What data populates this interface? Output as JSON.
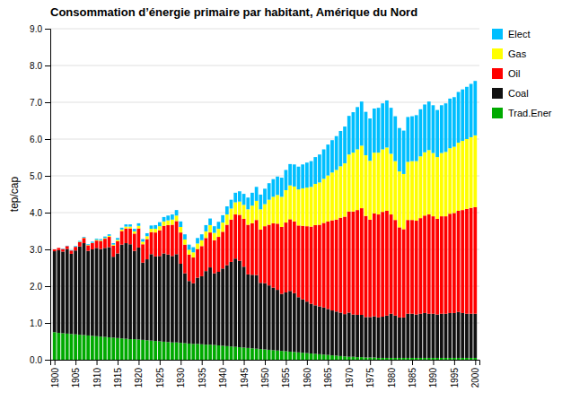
{
  "chart_data": {
    "type": "bar",
    "stacked": true,
    "title": "Consommation d’énergie primaire par habitant, Amérique du Nord",
    "ylabel": "tep/cap",
    "grid": true,
    "legend": "right",
    "x": [
      1900,
      1901,
      1902,
      1903,
      1904,
      1905,
      1906,
      1907,
      1908,
      1909,
      1910,
      1911,
      1912,
      1913,
      1914,
      1915,
      1916,
      1917,
      1918,
      1919,
      1920,
      1921,
      1922,
      1923,
      1924,
      1925,
      1926,
      1927,
      1928,
      1929,
      1930,
      1931,
      1932,
      1933,
      1934,
      1935,
      1936,
      1937,
      1938,
      1939,
      1940,
      1941,
      1942,
      1943,
      1944,
      1945,
      1946,
      1947,
      1948,
      1949,
      1950,
      1951,
      1952,
      1953,
      1954,
      1955,
      1956,
      1957,
      1958,
      1959,
      1960,
      1961,
      1962,
      1963,
      1964,
      1965,
      1966,
      1967,
      1968,
      1969,
      1970,
      1971,
      1972,
      1973,
      1974,
      1975,
      1976,
      1977,
      1978,
      1979,
      1980,
      1981,
      1982,
      1983,
      1984,
      1985,
      1986,
      1987,
      1988,
      1989,
      1990,
      1991,
      1992,
      1993,
      1994,
      1995,
      1996,
      1997,
      1998,
      1999,
      2000
    ],
    "xlim": [
      1899,
      2001
    ],
    "xticks": [
      1900,
      1905,
      1910,
      1915,
      1920,
      1925,
      1930,
      1935,
      1940,
      1945,
      1950,
      1955,
      1960,
      1965,
      1970,
      1975,
      1980,
      1985,
      1990,
      1995,
      2000
    ],
    "ylim": [
      0,
      9.0
    ],
    "yticks": [
      {
        "value": 0.0,
        "label": "0.0"
      },
      {
        "value": 1.0,
        "label": "1.0"
      },
      {
        "value": 2.0,
        "label": "2.0"
      },
      {
        "value": 3.0,
        "label": "3.0"
      },
      {
        "value": 4.0,
        "label": "4.0"
      },
      {
        "value": 5.0,
        "label": "5.0"
      },
      {
        "value": 6.0,
        "label": "6.0"
      },
      {
        "value": 7.0,
        "label": "7.0"
      },
      {
        "value": 8.0,
        "label": "8.0"
      },
      {
        "value": 9.0,
        "label": "9.0"
      }
    ],
    "series": [
      {
        "name": "Trad.Ener",
        "color": "#00aa00",
        "values": [
          0.75,
          0.73,
          0.72,
          0.71,
          0.7,
          0.69,
          0.68,
          0.67,
          0.66,
          0.65,
          0.64,
          0.63,
          0.62,
          0.61,
          0.6,
          0.59,
          0.58,
          0.57,
          0.56,
          0.56,
          0.55,
          0.54,
          0.53,
          0.52,
          0.51,
          0.5,
          0.49,
          0.48,
          0.47,
          0.47,
          0.46,
          0.45,
          0.44,
          0.43,
          0.43,
          0.42,
          0.41,
          0.41,
          0.4,
          0.39,
          0.38,
          0.37,
          0.36,
          0.35,
          0.34,
          0.33,
          0.32,
          0.31,
          0.3,
          0.29,
          0.28,
          0.27,
          0.26,
          0.25,
          0.24,
          0.23,
          0.22,
          0.21,
          0.2,
          0.19,
          0.18,
          0.17,
          0.16,
          0.15,
          0.14,
          0.13,
          0.12,
          0.11,
          0.1,
          0.09,
          0.08,
          0.08,
          0.07,
          0.07,
          0.06,
          0.06,
          0.06,
          0.05,
          0.05,
          0.05,
          0.05,
          0.05,
          0.05,
          0.05,
          0.05,
          0.05,
          0.05,
          0.05,
          0.05,
          0.05,
          0.05,
          0.05,
          0.05,
          0.05,
          0.05,
          0.05,
          0.05,
          0.05,
          0.05,
          0.05,
          0.05
        ]
      },
      {
        "name": "Coal",
        "color": "#111111",
        "values": [
          2.2,
          2.25,
          2.22,
          2.3,
          2.18,
          2.28,
          2.4,
          2.5,
          2.3,
          2.35,
          2.4,
          2.38,
          2.42,
          2.45,
          2.2,
          2.3,
          2.55,
          2.6,
          2.58,
          2.4,
          2.5,
          2.1,
          2.2,
          2.35,
          2.3,
          2.32,
          2.4,
          2.38,
          2.35,
          2.4,
          2.15,
          1.9,
          1.7,
          1.65,
          1.8,
          1.85,
          2.0,
          2.1,
          1.95,
          2.0,
          2.1,
          2.2,
          2.3,
          2.4,
          2.35,
          2.2,
          2.0,
          2.0,
          2.0,
          1.8,
          1.8,
          1.75,
          1.7,
          1.65,
          1.55,
          1.6,
          1.65,
          1.6,
          1.5,
          1.45,
          1.4,
          1.35,
          1.32,
          1.3,
          1.28,
          1.25,
          1.22,
          1.2,
          1.18,
          1.15,
          1.2,
          1.15,
          1.15,
          1.15,
          1.1,
          1.1,
          1.12,
          1.1,
          1.12,
          1.15,
          1.2,
          1.15,
          1.1,
          1.1,
          1.2,
          1.2,
          1.18,
          1.2,
          1.22,
          1.2,
          1.2,
          1.18,
          1.2,
          1.2,
          1.22,
          1.22,
          1.25,
          1.22,
          1.2,
          1.2,
          1.2
        ]
      },
      {
        "name": "Oil",
        "color": "#ff0000",
        "values": [
          0.05,
          0.06,
          0.07,
          0.08,
          0.09,
          0.1,
          0.12,
          0.14,
          0.15,
          0.17,
          0.2,
          0.22,
          0.25,
          0.28,
          0.3,
          0.33,
          0.37,
          0.4,
          0.43,
          0.47,
          0.52,
          0.5,
          0.55,
          0.6,
          0.65,
          0.7,
          0.75,
          0.8,
          0.85,
          0.9,
          0.85,
          0.78,
          0.72,
          0.7,
          0.78,
          0.82,
          0.9,
          0.95,
          0.9,
          0.95,
          1.0,
          1.1,
          1.15,
          1.2,
          1.25,
          1.3,
          1.35,
          1.4,
          1.5,
          1.45,
          1.55,
          1.65,
          1.75,
          1.8,
          1.82,
          1.9,
          1.95,
          1.95,
          1.95,
          2.0,
          2.05,
          2.1,
          2.18,
          2.22,
          2.3,
          2.38,
          2.45,
          2.5,
          2.58,
          2.65,
          2.75,
          2.8,
          2.85,
          2.9,
          2.75,
          2.65,
          2.8,
          2.8,
          2.85,
          2.85,
          2.7,
          2.6,
          2.45,
          2.4,
          2.55,
          2.55,
          2.55,
          2.6,
          2.65,
          2.7,
          2.65,
          2.6,
          2.65,
          2.65,
          2.7,
          2.72,
          2.75,
          2.8,
          2.85,
          2.88,
          2.9
        ]
      },
      {
        "name": "Gas",
        "color": "#ffff00",
        "values": [
          0.0,
          0.0,
          0.0,
          0.0,
          0.0,
          0.0,
          0.01,
          0.01,
          0.01,
          0.01,
          0.02,
          0.02,
          0.02,
          0.03,
          0.03,
          0.04,
          0.04,
          0.05,
          0.05,
          0.06,
          0.07,
          0.07,
          0.08,
          0.09,
          0.1,
          0.11,
          0.12,
          0.13,
          0.14,
          0.15,
          0.15,
          0.14,
          0.13,
          0.14,
          0.15,
          0.16,
          0.18,
          0.2,
          0.2,
          0.22,
          0.25,
          0.28,
          0.3,
          0.33,
          0.36,
          0.38,
          0.42,
          0.48,
          0.52,
          0.55,
          0.6,
          0.68,
          0.72,
          0.78,
          0.82,
          0.88,
          0.92,
          0.95,
          0.98,
          1.02,
          1.05,
          1.08,
          1.12,
          1.15,
          1.2,
          1.25,
          1.3,
          1.35,
          1.4,
          1.45,
          1.55,
          1.6,
          1.65,
          1.7,
          1.65,
          1.6,
          1.65,
          1.68,
          1.7,
          1.72,
          1.65,
          1.6,
          1.52,
          1.5,
          1.58,
          1.6,
          1.62,
          1.68,
          1.72,
          1.75,
          1.72,
          1.68,
          1.72,
          1.75,
          1.78,
          1.8,
          1.85,
          1.88,
          1.9,
          1.92,
          1.95
        ]
      },
      {
        "name": "Elect",
        "color": "#00bfff",
        "values": [
          0.0,
          0.0,
          0.01,
          0.01,
          0.01,
          0.02,
          0.02,
          0.02,
          0.02,
          0.03,
          0.03,
          0.03,
          0.04,
          0.04,
          0.04,
          0.05,
          0.05,
          0.06,
          0.06,
          0.07,
          0.07,
          0.07,
          0.08,
          0.09,
          0.1,
          0.11,
          0.12,
          0.13,
          0.14,
          0.15,
          0.15,
          0.14,
          0.14,
          0.14,
          0.15,
          0.16,
          0.17,
          0.18,
          0.18,
          0.19,
          0.2,
          0.22,
          0.24,
          0.26,
          0.28,
          0.3,
          0.32,
          0.35,
          0.38,
          0.4,
          0.42,
          0.45,
          0.48,
          0.5,
          0.52,
          0.55,
          0.58,
          0.6,
          0.62,
          0.65,
          0.68,
          0.7,
          0.73,
          0.76,
          0.8,
          0.84,
          0.88,
          0.92,
          0.96,
          1.0,
          1.05,
          1.1,
          1.15,
          1.2,
          1.18,
          1.15,
          1.2,
          1.22,
          1.25,
          1.28,
          1.25,
          1.22,
          1.18,
          1.18,
          1.22,
          1.22,
          1.25,
          1.28,
          1.3,
          1.32,
          1.3,
          1.28,
          1.3,
          1.32,
          1.35,
          1.35,
          1.38,
          1.4,
          1.42,
          1.45,
          1.48
        ]
      }
    ]
  }
}
